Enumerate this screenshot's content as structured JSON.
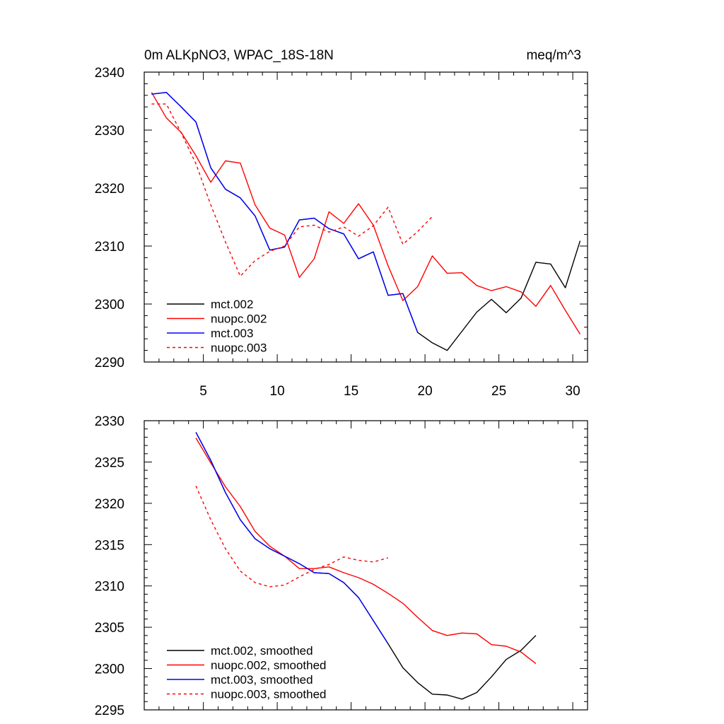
{
  "chart_data": [
    {
      "type": "line",
      "title_left": "0m ALKpNO3, WPAC_18S-18N",
      "title_right": "meq/m^3",
      "xlim": [
        1,
        31
      ],
      "ylim": [
        2290,
        2340
      ],
      "yticks": [
        "2290",
        "2300",
        "2310",
        "2320",
        "2330",
        "2340"
      ],
      "xticks": [
        "5",
        "10",
        "15",
        "20",
        "25",
        "30"
      ],
      "legend_position": "bottom-left",
      "series": [
        {
          "name": "mct.002",
          "color": "#000000",
          "dashed": false,
          "x": [
            1.5,
            2.5,
            3.5,
            4.5,
            5.5,
            6.5,
            7.5,
            8.5,
            9.5,
            10.5,
            11.5,
            12.5,
            13.5,
            14.5,
            15.5,
            16.5,
            17.5,
            18.5,
            19.5,
            20.5,
            21.5,
            22.5,
            23.5,
            24.5,
            25.5,
            26.5,
            27.5,
            28.5,
            29.5,
            30.5
          ],
          "y": [
            2336.2,
            2336.5,
            2334.0,
            2331.4,
            2323.5,
            2319.8,
            2318.3,
            2315.2,
            2309.3,
            2309.8,
            2314.5,
            2314.8,
            2313.0,
            2312.1,
            2307.8,
            2309.0,
            2301.5,
            2301.8,
            2295.1,
            2293.3,
            2292.0,
            2295.3,
            2298.6,
            2300.8,
            2298.5,
            2301.0,
            2307.2,
            2306.9,
            2302.8,
            2310.9
          ]
        },
        {
          "name": "nuopc.002",
          "color": "#ff0000",
          "dashed": false,
          "x": [
            1.5,
            2.5,
            3.5,
            4.5,
            5.5,
            6.5,
            7.5,
            8.5,
            9.5,
            10.5,
            11.5,
            12.5,
            13.5,
            14.5,
            15.5,
            16.5,
            17.5,
            18.5,
            19.5,
            20.5,
            21.5,
            22.5,
            23.5,
            24.5,
            25.5,
            26.5,
            27.5,
            28.5,
            29.5,
            30.5
          ],
          "y": [
            2336.5,
            2332.1,
            2329.6,
            2325.6,
            2321.0,
            2324.7,
            2324.3,
            2317.1,
            2313.1,
            2311.9,
            2304.6,
            2307.8,
            2315.9,
            2313.9,
            2317.3,
            2313.6,
            2306.6,
            2300.6,
            2303.0,
            2308.3,
            2305.3,
            2305.4,
            2303.2,
            2302.3,
            2303.0,
            2302.1,
            2299.6,
            2303.2,
            2298.9,
            2294.8
          ]
        },
        {
          "name": "mct.003",
          "color": "#0000ff",
          "dashed": false,
          "x": [
            1.5,
            2.5,
            3.5,
            4.5,
            5.5,
            6.5,
            7.5,
            8.5,
            9.5,
            10.5,
            11.5,
            12.5,
            13.5,
            14.5,
            15.5,
            16.5,
            17.5,
            18.5,
            19.5
          ],
          "y": [
            2336.2,
            2336.5,
            2334.0,
            2331.4,
            2323.5,
            2319.8,
            2318.3,
            2315.2,
            2309.3,
            2309.8,
            2314.5,
            2314.8,
            2313.0,
            2312.1,
            2307.8,
            2309.0,
            2301.5,
            2301.8,
            2295.1
          ]
        },
        {
          "name": "nuopc.003",
          "color": "#ff0000",
          "dashed": true,
          "x": [
            1.5,
            2.5,
            3.5,
            4.5,
            5.5,
            6.5,
            7.5,
            8.5,
            9.5,
            10.5,
            11.5,
            12.5,
            13.5,
            14.5,
            15.5,
            16.5,
            17.5,
            18.5,
            19.5,
            20.5
          ],
          "y": [
            2334.5,
            2334.5,
            2329.5,
            2324.2,
            2317.1,
            2310.7,
            2304.8,
            2307.5,
            2309.1,
            2310.0,
            2313.3,
            2313.6,
            2312.4,
            2313.3,
            2311.7,
            2313.5,
            2316.7,
            2310.3,
            2312.5,
            2315.1
          ]
        }
      ]
    },
    {
      "type": "line",
      "xlim": [
        1,
        31
      ],
      "ylim": [
        2295,
        2330
      ],
      "yticks": [
        "2295",
        "2300",
        "2305",
        "2310",
        "2315",
        "2320",
        "2325",
        "2330"
      ],
      "xticks": [],
      "legend_position": "bottom-left",
      "series": [
        {
          "name": "mct.002, smoothed",
          "color": "#000000",
          "dashed": false,
          "x": [
            4.5,
            5.5,
            6.5,
            7.5,
            8.5,
            9.5,
            10.5,
            11.5,
            12.5,
            13.5,
            14.5,
            15.5,
            16.5,
            17.5,
            18.5,
            19.5,
            20.5,
            21.5,
            22.5,
            23.5,
            24.5,
            25.5,
            26.5,
            27.5
          ],
          "y": [
            2328.6,
            2325.2,
            2321.3,
            2318.0,
            2315.7,
            2314.5,
            2313.6,
            2312.7,
            2311.6,
            2311.5,
            2310.4,
            2308.6,
            2305.8,
            2303.0,
            2300.1,
            2298.3,
            2296.9,
            2296.8,
            2296.3,
            2297.1,
            2299.0,
            2301.1,
            2302.2,
            2304.0
          ]
        },
        {
          "name": "nuopc.002, smoothed",
          "color": "#ff0000",
          "dashed": false,
          "x": [
            4.5,
            5.5,
            6.5,
            7.5,
            8.5,
            9.5,
            10.5,
            11.5,
            12.5,
            13.5,
            14.5,
            15.5,
            16.5,
            17.5,
            18.5,
            19.5,
            20.5,
            21.5,
            22.5,
            23.5,
            24.5,
            25.5,
            26.5,
            27.5
          ],
          "y": [
            2327.9,
            2324.9,
            2322.0,
            2319.6,
            2316.6,
            2314.8,
            2313.6,
            2312.1,
            2312.1,
            2312.3,
            2311.6,
            2311.0,
            2310.2,
            2309.1,
            2307.9,
            2306.2,
            2304.6,
            2304.0,
            2304.3,
            2304.2,
            2302.9,
            2302.7,
            2302.0,
            2300.6
          ]
        },
        {
          "name": "mct.003, smoothed",
          "color": "#0000ff",
          "dashed": false,
          "x": [
            4.5,
            5.5,
            6.5,
            7.5,
            8.5,
            9.5,
            10.5,
            11.5,
            12.5,
            13.5,
            14.5,
            15.5,
            16.5,
            17.5
          ],
          "y": [
            2328.6,
            2325.2,
            2321.3,
            2318.0,
            2315.7,
            2314.5,
            2313.6,
            2312.7,
            2311.6,
            2311.5,
            2310.4,
            2308.6,
            2305.8,
            2303.0
          ]
        },
        {
          "name": "nuopc.003, smoothed",
          "color": "#ff0000",
          "dashed": true,
          "x": [
            4.5,
            5.5,
            6.5,
            7.5,
            8.5,
            9.5,
            10.5,
            11.5,
            12.5,
            13.5,
            14.5,
            15.5,
            16.5,
            17.5
          ],
          "y": [
            2322.1,
            2318.0,
            2314.5,
            2311.8,
            2310.4,
            2309.9,
            2310.1,
            2311.1,
            2312.0,
            2312.6,
            2313.5,
            2313.1,
            2312.9,
            2313.4
          ]
        }
      ]
    }
  ]
}
